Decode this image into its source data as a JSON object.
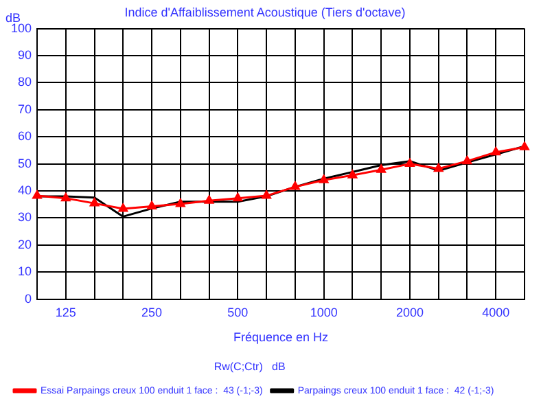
{
  "chart_data": {
    "type": "line",
    "title": "Indice d'Affaiblissement Acoustique (Tiers d'octave)",
    "xlabel": "Fréquence en Hz",
    "ylabel": "dB",
    "legend_title": "Rw(C;Ctr)   dB",
    "categories": [
      null,
      "125",
      null,
      null,
      "250",
      null,
      null,
      "500",
      null,
      null,
      "1000",
      null,
      null,
      "2000",
      null,
      null,
      "4000",
      null
    ],
    "series": [
      {
        "name": "Essai Parpaings creux 100 enduit 1 face :  43 (-1;-3)",
        "color": "#ff0000",
        "marker": "triangle",
        "values": [
          38.2,
          37.3,
          35.4,
          33.4,
          34.3,
          35.2,
          36.4,
          37.3,
          38.2,
          41.5,
          44,
          45.8,
          47.8,
          50,
          48.2,
          51,
          54.3,
          56.2
        ]
      },
      {
        "name": "Parpaings creux 100 enduit 1 face :  42 (-1;-3)",
        "color": "#000000",
        "marker": "none",
        "values": [
          38,
          38,
          37.5,
          30.5,
          33.5,
          36,
          36,
          36,
          38,
          41.5,
          44.5,
          47,
          49.5,
          51,
          47.5,
          50.5,
          53.5,
          56.5
        ]
      }
    ],
    "ylim": [
      0,
      100
    ],
    "yticks": [
      0,
      10,
      20,
      30,
      40,
      50,
      60,
      70,
      80,
      90,
      100
    ],
    "grid": true,
    "legend": "bottom",
    "line_style": "solid"
  }
}
